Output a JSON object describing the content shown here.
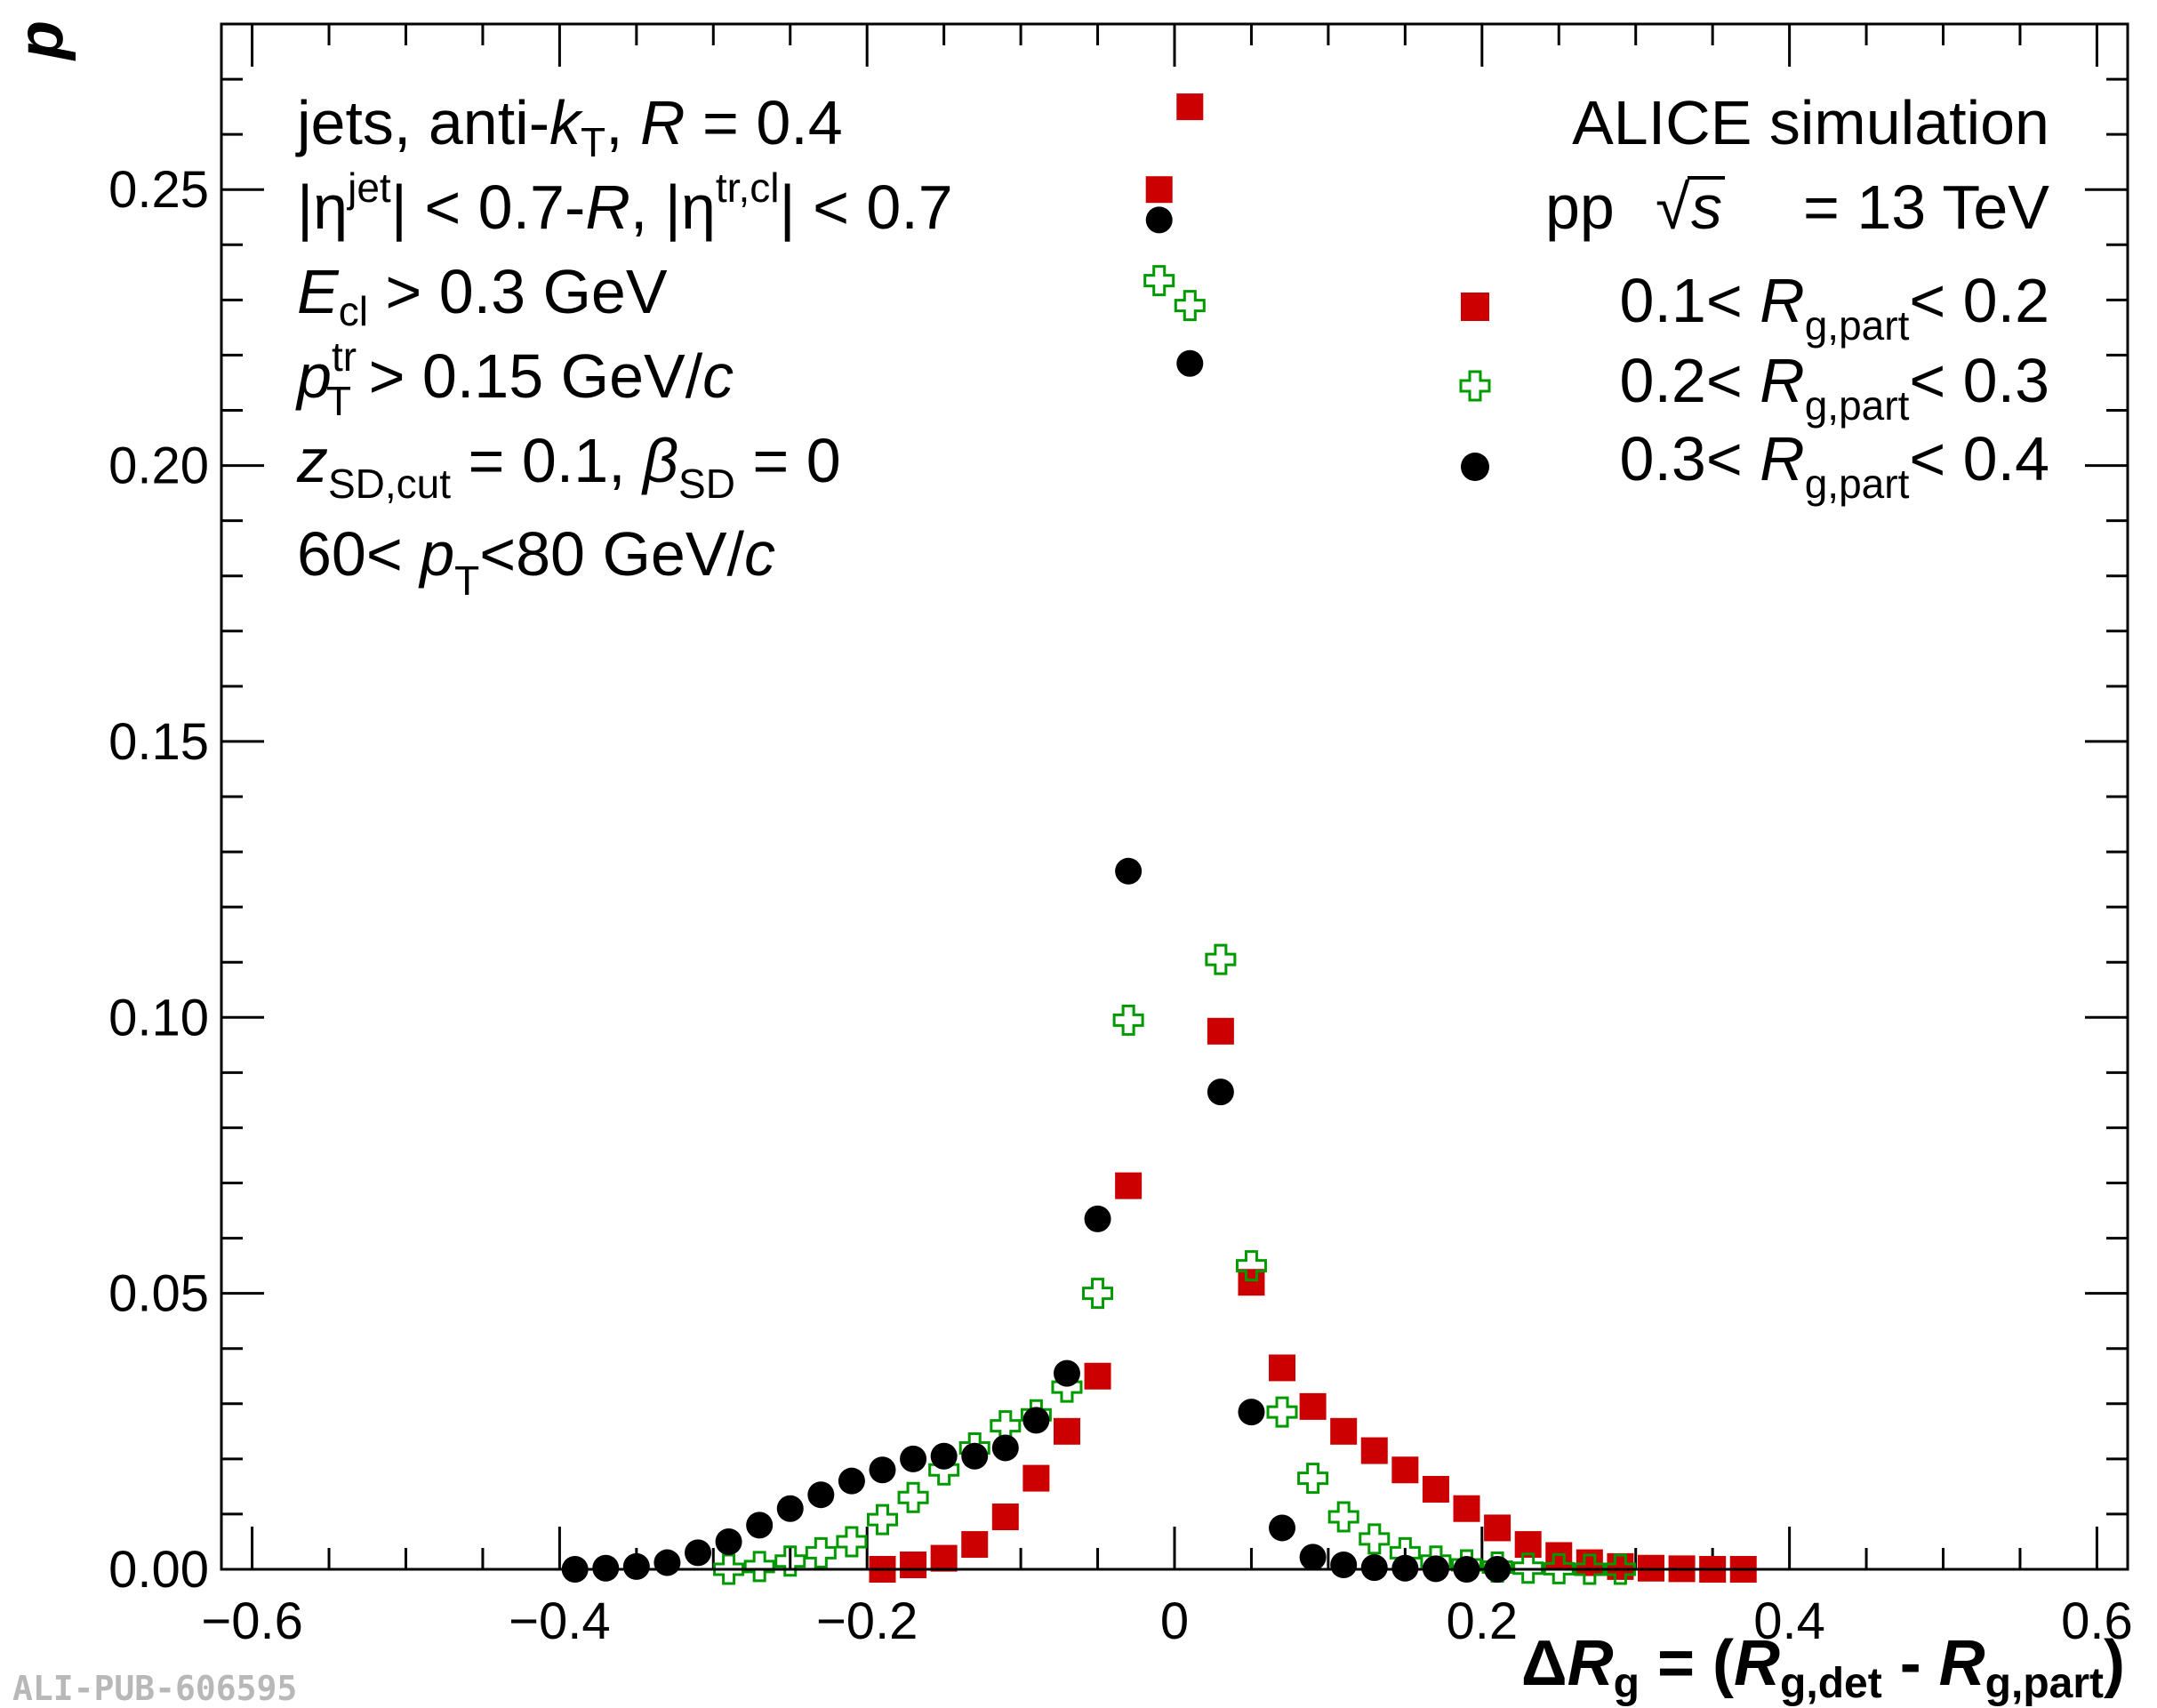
{
  "chart_data": {
    "type": "scatter",
    "xlabel": "ΔR_g = (R_g,det - R_g,part)",
    "ylabel": "p",
    "xlim": [
      -0.62,
      0.62
    ],
    "ylim": [
      0,
      0.28
    ],
    "x_ticks": [
      -0.6,
      -0.4,
      -0.2,
      0,
      0.2,
      0.4,
      0.6
    ],
    "x_tick_labels": [
      "−0.6",
      "−0.4",
      "−0.2",
      "0",
      "0.2",
      "0.4",
      "0.6"
    ],
    "y_ticks": [
      0,
      0.05,
      0.1,
      0.15,
      0.2,
      0.25
    ],
    "y_tick_labels": [
      "0.00",
      "0.05",
      "0.10",
      "0.15",
      "0.20",
      "0.25"
    ],
    "grid": false,
    "legend_position": "top-right",
    "header": {
      "experiment": "ALICE simulation",
      "collision": "pp",
      "energy": "= 13 TeV"
    },
    "annotations": {
      "jets": "jets, anti-k_T, R = 0.4",
      "eta": "|η^jet| < 0.7-R, |η^tr,cl| < 0.7",
      "ecl": "E_cl > 0.3 GeV",
      "ptr": "p_T^tr > 0.15 GeV/c",
      "zsd": "z_SD,cut = 0.1, β_SD = 0",
      "pt": "60< p_T<80 GeV/c"
    },
    "series": [
      {
        "name": "0.1< R_g,part< 0.2",
        "marker": "filled-square",
        "color": "#cc0000",
        "x": [
          -0.19,
          -0.17,
          -0.15,
          -0.13,
          -0.11,
          -0.09,
          -0.07,
          -0.05,
          -0.03,
          -0.01,
          0.01,
          0.03,
          0.05,
          0.07,
          0.09,
          0.11,
          0.13,
          0.15,
          0.17,
          0.19,
          0.21,
          0.23,
          0.25,
          0.27,
          0.29,
          0.31,
          0.33,
          0.35,
          0.37
        ],
        "y": [
          0.0,
          0.0008,
          0.002,
          0.0045,
          0.0095,
          0.0165,
          0.025,
          0.035,
          0.0695,
          0.25,
          0.265,
          0.0975,
          0.052,
          0.0365,
          0.0295,
          0.025,
          0.0215,
          0.018,
          0.0145,
          0.011,
          0.0075,
          0.0045,
          0.0025,
          0.0012,
          0.0005,
          0.0002,
          0.0001,
          0.0,
          0.0
        ]
      },
      {
        "name": "0.2< R_g,part< 0.3",
        "marker": "open-cross",
        "color": "#009900",
        "x": [
          -0.29,
          -0.27,
          -0.25,
          -0.23,
          -0.21,
          -0.19,
          -0.17,
          -0.15,
          -0.13,
          -0.11,
          -0.09,
          -0.07,
          -0.05,
          -0.03,
          -0.01,
          0.01,
          0.03,
          0.05,
          0.07,
          0.09,
          0.11,
          0.13,
          0.15,
          0.17,
          0.19,
          0.21,
          0.23,
          0.25,
          0.27,
          0.29
        ],
        "y": [
          0.0,
          0.0005,
          0.0015,
          0.003,
          0.005,
          0.009,
          0.013,
          0.018,
          0.022,
          0.026,
          0.028,
          0.033,
          0.05,
          0.0995,
          0.2335,
          0.229,
          0.1105,
          0.055,
          0.0285,
          0.0165,
          0.0095,
          0.0055,
          0.003,
          0.0015,
          0.0008,
          0.0004,
          0.0002,
          0.0001,
          0.0,
          0.0
        ]
      },
      {
        "name": "0.3< R_g,part< 0.4",
        "marker": "filled-circle",
        "color": "#000000",
        "x": [
          -0.39,
          -0.37,
          -0.35,
          -0.33,
          -0.31,
          -0.29,
          -0.27,
          -0.25,
          -0.23,
          -0.21,
          -0.19,
          -0.17,
          -0.15,
          -0.13,
          -0.11,
          -0.09,
          -0.07,
          -0.05,
          -0.03,
          -0.01,
          0.01,
          0.03,
          0.05,
          0.07,
          0.09,
          0.11,
          0.13,
          0.15,
          0.17,
          0.19,
          0.21
        ],
        "y": [
          0.0,
          0.0002,
          0.0005,
          0.0012,
          0.003,
          0.005,
          0.008,
          0.011,
          0.0135,
          0.016,
          0.018,
          0.02,
          0.0205,
          0.0205,
          0.022,
          0.027,
          0.0355,
          0.0635,
          0.1265,
          0.2445,
          0.2185,
          0.0865,
          0.0285,
          0.0075,
          0.0022,
          0.0008,
          0.0003,
          0.0002,
          0.0001,
          0.0,
          0.0
        ]
      }
    ]
  },
  "footer": {
    "publication_id": "ALI-PUB-606595"
  }
}
